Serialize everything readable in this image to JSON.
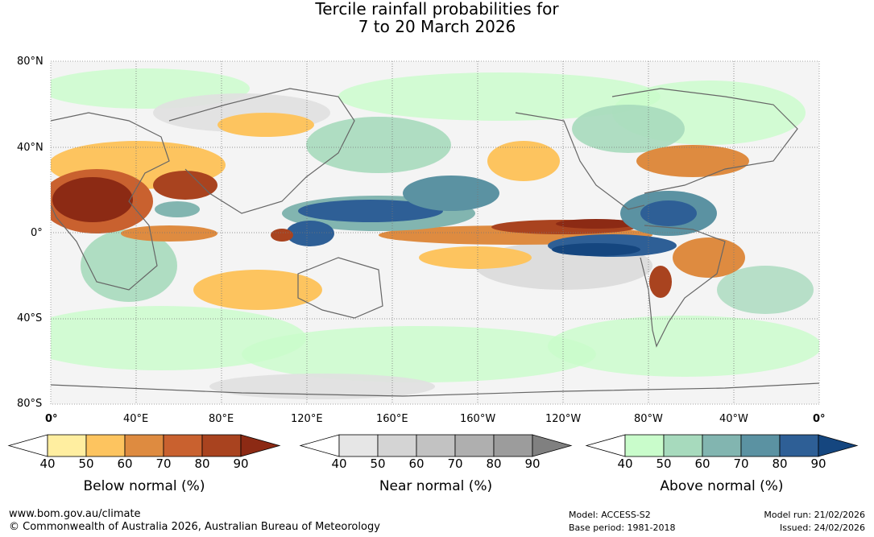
{
  "title_line1": "Tercile rainfall probabilities for",
  "title_line2": "7 to 20 March 2026",
  "lat_labels": [
    "80°N",
    "40°N",
    "0°",
    "40°S",
    "80°S"
  ],
  "lon_labels": [
    "0°",
    "40°E",
    "80°E",
    "120°E",
    "160°E",
    "160°W",
    "120°W",
    "80°W",
    "40°W",
    "0°"
  ],
  "legends": [
    {
      "title": "Below normal (%)",
      "ticks": [
        "40",
        "50",
        "60",
        "70",
        "80",
        "90"
      ],
      "colors": [
        "#ffeea0",
        "#fdc45f",
        "#de8b40",
        "#c9612f",
        "#a9431f",
        "#8c2a14"
      ]
    },
    {
      "title": "Near normal (%)",
      "ticks": [
        "40",
        "50",
        "60",
        "70",
        "80",
        "90"
      ],
      "colors": [
        "#e6e6e6",
        "#d4d4d4",
        "#c2c2c2",
        "#afafaf",
        "#9c9c9c",
        "#808080"
      ]
    },
    {
      "title": "Above normal (%)",
      "ticks": [
        "40",
        "50",
        "60",
        "70",
        "80",
        "90"
      ],
      "colors": [
        "#c9fccb",
        "#a7dabd",
        "#82b5b0",
        "#5b92a2",
        "#2e5f96",
        "#15467f"
      ]
    }
  ],
  "footer": {
    "url": "www.bom.gov.au/climate",
    "copyright": "© Commonwealth of Australia 2026, Australian Bureau of Meteorology",
    "model": "Model: ACCESS-S2",
    "base_period": "Base period: 1981-2018",
    "model_run": "Model run: 21/02/2026",
    "issued": "Issued: 24/02/2026"
  }
}
